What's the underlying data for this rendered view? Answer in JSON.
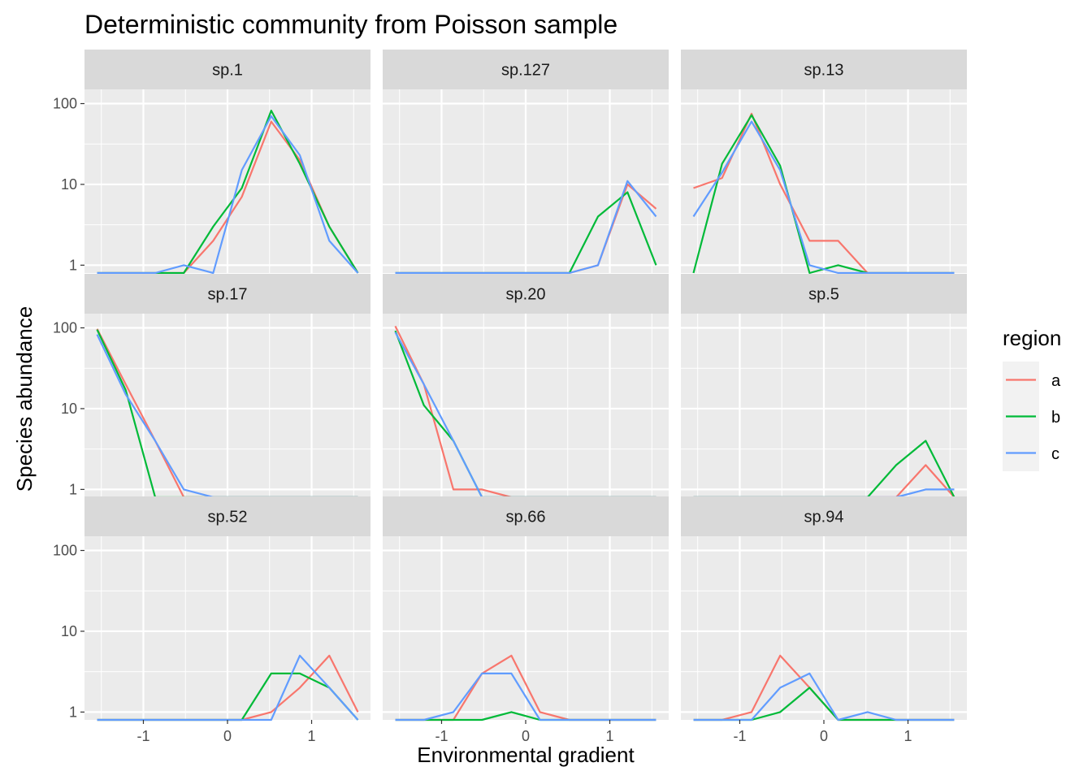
{
  "chart_data": {
    "type": "line",
    "title": "Deterministic community from Poisson sample",
    "xlabel": "Environmental gradient",
    "ylabel": "Species abundance",
    "y_scale": "log10",
    "y_ticks": [
      1,
      10,
      100
    ],
    "y_tick_labels": [
      "1",
      "10",
      "100"
    ],
    "x_ticks": [
      -1,
      0,
      1
    ],
    "x_tick_labels": [
      "-1",
      "0",
      "1"
    ],
    "xlim": [
      -1.7,
      1.7
    ],
    "ylim": [
      0.8,
      150
    ],
    "grid": true,
    "facet_layout": "3x3",
    "legend": {
      "title": "region",
      "position": "right",
      "entries": [
        {
          "label": "a",
          "color": "#F8766D"
        },
        {
          "label": "b",
          "color": "#00BA38"
        },
        {
          "label": "c",
          "color": "#619CFF"
        }
      ]
    },
    "x": [
      -1.55,
      -1.21,
      -0.86,
      -0.52,
      -0.17,
      0.17,
      0.52,
      0.86,
      1.21,
      1.55
    ],
    "zero_plotted_at": 0.8,
    "facets": [
      {
        "label": "sp.1",
        "series": [
          {
            "name": "a",
            "values": [
              0,
              0,
              0,
              0,
              2,
              7,
              60,
              20,
              3,
              0
            ]
          },
          {
            "name": "b",
            "values": [
              0,
              0,
              0,
              0,
              3,
              9,
              82,
              18,
              3,
              0
            ]
          },
          {
            "name": "c",
            "values": [
              0,
              0,
              0,
              1,
              0,
              15,
              70,
              23,
              2,
              0
            ]
          }
        ]
      },
      {
        "label": "sp.127",
        "series": [
          {
            "name": "a",
            "values": [
              0,
              0,
              0,
              0,
              0,
              0,
              0,
              1,
              10,
              5
            ]
          },
          {
            "name": "b",
            "values": [
              0,
              0,
              0,
              0,
              0,
              0,
              0,
              4,
              8,
              1
            ]
          },
          {
            "name": "c",
            "values": [
              0,
              0,
              0,
              0,
              0,
              0,
              0,
              1,
              11,
              4
            ]
          }
        ]
      },
      {
        "label": "sp.13",
        "series": [
          {
            "name": "a",
            "values": [
              9,
              12,
              75,
              10,
              2,
              2,
              0,
              0,
              0,
              0
            ]
          },
          {
            "name": "b",
            "values": [
              0,
              18,
              72,
              17,
              0,
              1,
              0,
              0,
              0,
              0
            ]
          },
          {
            "name": "c",
            "values": [
              4,
              14,
              60,
              15,
              1,
              0,
              0,
              0,
              0,
              0
            ]
          }
        ]
      },
      {
        "label": "sp.17",
        "series": [
          {
            "name": "a",
            "values": [
              97,
              20,
              4,
              0,
              0,
              0,
              0,
              0,
              0,
              0
            ]
          },
          {
            "name": "b",
            "values": [
              95,
              17,
              0,
              0,
              0,
              0,
              0,
              0,
              0,
              0
            ]
          },
          {
            "name": "c",
            "values": [
              83,
              15,
              4,
              1,
              0,
              0,
              0,
              0,
              0,
              0
            ]
          }
        ]
      },
      {
        "label": "sp.20",
        "series": [
          {
            "name": "a",
            "values": [
              105,
              20,
              1,
              1,
              0,
              0,
              0,
              0,
              0,
              0
            ]
          },
          {
            "name": "b",
            "values": [
              92,
              11,
              4,
              0,
              0,
              0,
              0,
              0,
              0,
              0
            ]
          },
          {
            "name": "c",
            "values": [
              88,
              20,
              4,
              0,
              0,
              0,
              0,
              0,
              0,
              0
            ]
          }
        ]
      },
      {
        "label": "sp.5",
        "series": [
          {
            "name": "a",
            "values": [
              0,
              0,
              0,
              0,
              0,
              0,
              0,
              0,
              2,
              0
            ]
          },
          {
            "name": "b",
            "values": [
              0,
              0,
              0,
              0,
              0,
              0,
              0,
              2,
              4,
              0
            ]
          },
          {
            "name": "c",
            "values": [
              0,
              0,
              0,
              0,
              0,
              0,
              0,
              0,
              1,
              1
            ]
          }
        ]
      },
      {
        "label": "sp.52",
        "series": [
          {
            "name": "a",
            "values": [
              0,
              0,
              0,
              0,
              0,
              0,
              1,
              2,
              5,
              1
            ]
          },
          {
            "name": "b",
            "values": [
              0,
              0,
              0,
              0,
              0,
              0,
              3,
              3,
              2,
              0
            ]
          },
          {
            "name": "c",
            "values": [
              0,
              0,
              0,
              0,
              0,
              0,
              0,
              5,
              2,
              0
            ]
          }
        ]
      },
      {
        "label": "sp.66",
        "series": [
          {
            "name": "a",
            "values": [
              0,
              0,
              0,
              3,
              5,
              1,
              0,
              0,
              0,
              0
            ]
          },
          {
            "name": "b",
            "values": [
              0,
              0,
              0,
              0,
              1,
              0,
              0,
              0,
              0,
              0
            ]
          },
          {
            "name": "c",
            "values": [
              0,
              0,
              1,
              3,
              3,
              0,
              0,
              0,
              0,
              0
            ]
          }
        ]
      },
      {
        "label": "sp.94",
        "series": [
          {
            "name": "a",
            "values": [
              0,
              0,
              1,
              5,
              2,
              0,
              0,
              0,
              0,
              0
            ]
          },
          {
            "name": "b",
            "values": [
              0,
              0,
              0,
              1,
              2,
              0,
              0,
              0,
              0,
              0
            ]
          },
          {
            "name": "c",
            "values": [
              0,
              0,
              0,
              2,
              3,
              0,
              1,
              0,
              0,
              0
            ]
          }
        ]
      }
    ]
  }
}
